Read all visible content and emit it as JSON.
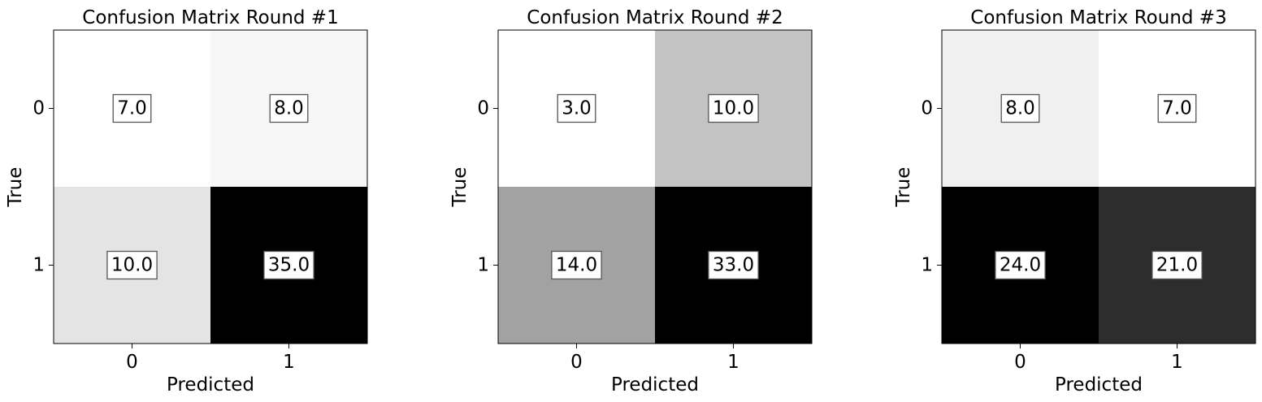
{
  "chart_data": [
    {
      "type": "heatmap",
      "title": "Confusion Matrix Round #1",
      "xlabel": "Predicted",
      "ylabel": "True",
      "x_ticks": [
        "0",
        "1"
      ],
      "y_ticks": [
        "0",
        "1"
      ],
      "values": [
        [
          7.0,
          8.0
        ],
        [
          10.0,
          35.0
        ]
      ],
      "labels": [
        [
          "7.0",
          "8.0"
        ],
        [
          "10.0",
          "35.0"
        ]
      ],
      "colormap": "Greys",
      "grid": false
    },
    {
      "type": "heatmap",
      "title": "Confusion Matrix Round #2",
      "xlabel": "Predicted",
      "ylabel": "True",
      "x_ticks": [
        "0",
        "1"
      ],
      "y_ticks": [
        "0",
        "1"
      ],
      "values": [
        [
          3.0,
          10.0
        ],
        [
          14.0,
          33.0
        ]
      ],
      "labels": [
        [
          "3.0",
          "10.0"
        ],
        [
          "14.0",
          "33.0"
        ]
      ],
      "colormap": "Greys",
      "grid": false
    },
    {
      "type": "heatmap",
      "title": "Confusion Matrix Round #3",
      "xlabel": "Predicted",
      "ylabel": "True",
      "x_ticks": [
        "0",
        "1"
      ],
      "y_ticks": [
        "0",
        "1"
      ],
      "values": [
        [
          8.0,
          7.0
        ],
        [
          24.0,
          21.0
        ]
      ],
      "labels": [
        [
          "8.0",
          "7.0"
        ],
        [
          "24.0",
          "21.0"
        ]
      ],
      "colormap": "Greys",
      "grid": false
    }
  ]
}
